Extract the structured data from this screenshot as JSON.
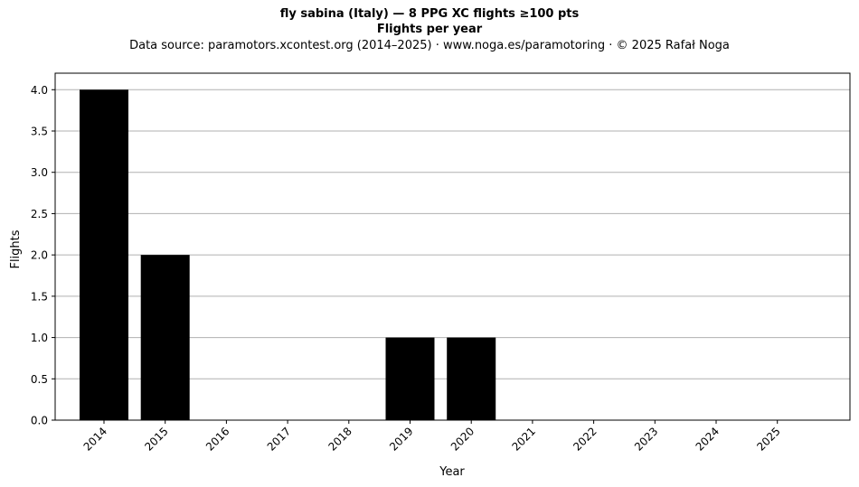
{
  "header": {
    "title": "fly sabina (Italy)  —  8 PPG XC flights ≥100 pts",
    "subtitle": "Flights per year",
    "source": "Data source: paramotors.xcontest.org (2014–2025)  ·  www.noga.es/paramotoring  ·  © 2025 Rafał Noga"
  },
  "chart_data": {
    "type": "bar",
    "title": "fly sabina (Italy)  —  8 PPG XC flights ≥100 pts",
    "subtitle": "Flights per year",
    "xlabel": "Year",
    "ylabel": "Flights",
    "categories": [
      "2014",
      "2015",
      "2016",
      "2017",
      "2018",
      "2019",
      "2020",
      "2021",
      "2022",
      "2023",
      "2024",
      "2025"
    ],
    "values": [
      4,
      2,
      0,
      0,
      0,
      1,
      1,
      0,
      0,
      0,
      0,
      0
    ],
    "ylim": [
      0,
      4.2
    ],
    "yticks": [
      "0.0",
      "0.5",
      "1.0",
      "1.5",
      "2.0",
      "2.5",
      "3.0",
      "3.5",
      "4.0"
    ],
    "ytick_values": [
      0,
      0.5,
      1,
      1.5,
      2,
      2.5,
      3,
      3.5,
      4
    ],
    "grid": "horizontal",
    "bar_color": "#000000",
    "grid_color": "#b0b0b0"
  }
}
